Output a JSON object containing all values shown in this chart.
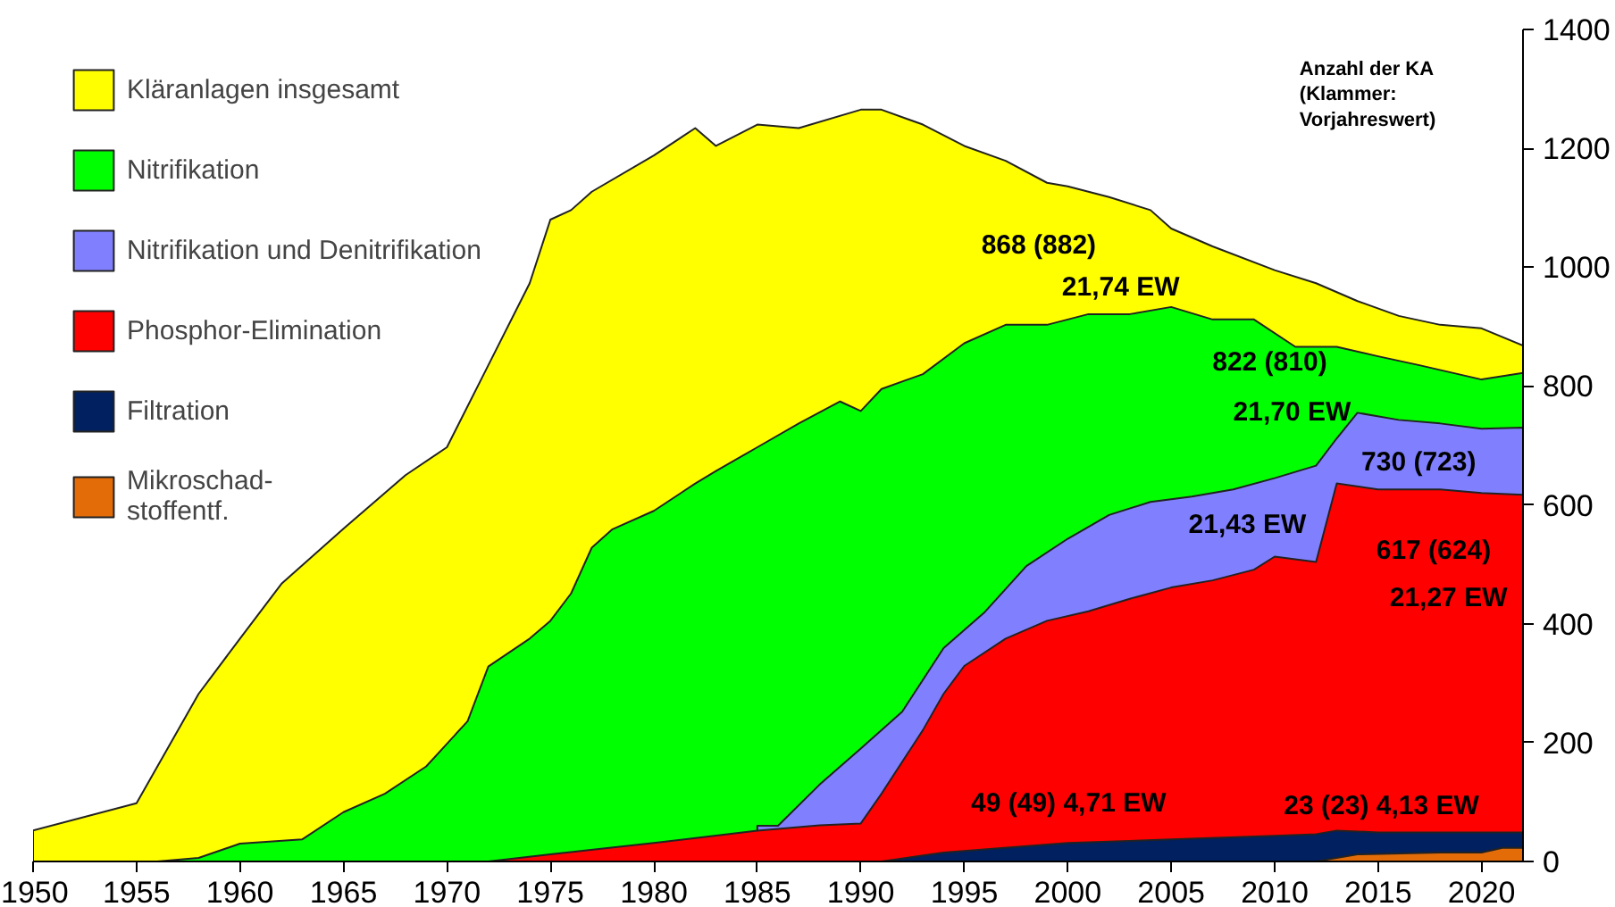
{
  "chart_data": {
    "type": "area",
    "xlim": [
      1950,
      2022
    ],
    "xticks": [
      1950,
      1955,
      1960,
      1965,
      1970,
      1975,
      1980,
      1985,
      1990,
      1995,
      2000,
      2005,
      2010,
      2015,
      2020
    ],
    "ylim": [
      0,
      1400
    ],
    "yticks": [
      0,
      200,
      400,
      600,
      800,
      1000,
      1200,
      1400
    ],
    "legend": "top left",
    "grid": false,
    "series": [
      {
        "name": "Kläranlagen insgesamt",
        "color": "#ffff00",
        "x": [
          1950,
          1955,
          1958,
          1960,
          1962,
          1965,
          1968,
          1970,
          1972,
          1974,
          1975,
          1976,
          1977,
          1980,
          1982,
          1983,
          1985,
          1987,
          1990,
          1991,
          1993,
          1995,
          1997,
          1999,
          2000,
          2002,
          2004,
          2005,
          2007,
          2010,
          2012,
          2014,
          2016,
          2018,
          2020,
          2022
        ],
        "values": [
          52,
          98,
          282,
          375,
          467,
          560,
          650,
          697,
          835,
          973,
          1080,
          1096,
          1127,
          1188,
          1234,
          1204,
          1240,
          1234,
          1265,
          1265,
          1240,
          1204,
          1179,
          1142,
          1136,
          1118,
          1096,
          1065,
          1035,
          995,
          973,
          943,
          918,
          903,
          897,
          868
        ]
      },
      {
        "name": "Nitrifikation",
        "color": "#00ff00",
        "x": [
          1956,
          1958,
          1960,
          1963,
          1965,
          1967,
          1969,
          1971,
          1972,
          1974,
          1975,
          1976,
          1977,
          1978,
          1980,
          1982,
          1983,
          1985,
          1987,
          1989,
          1990,
          1991,
          1993,
          1995,
          1997,
          1999,
          2001,
          2003,
          2005,
          2007,
          2009,
          2011,
          2013,
          2015,
          2017,
          2020,
          2022
        ],
        "values": [
          0,
          6,
          30,
          37,
          83,
          114,
          160,
          236,
          328,
          375,
          405,
          451,
          528,
          559,
          590,
          636,
          657,
          697,
          737,
          774,
          758,
          795,
          820,
          872,
          903,
          903,
          921,
          921,
          933,
          912,
          912,
          866,
          866,
          850,
          835,
          811,
          822
        ]
      },
      {
        "name": "Nitrifikation und Denitrifikation",
        "color": "#8080ff",
        "x": [
          1985,
          1986,
          1988,
          1990,
          1992,
          1994,
          1996,
          1998,
          2000,
          2002,
          2004,
          2006,
          2008,
          2010,
          2012,
          2013,
          2014,
          2016,
          2018,
          2020,
          2022
        ],
        "values": [
          60,
          60,
          129,
          190,
          252,
          359,
          420,
          497,
          543,
          583,
          605,
          614,
          626,
          645,
          666,
          712,
          755,
          743,
          737,
          728,
          730
        ]
      },
      {
        "name": "Phosphor-Elimination",
        "color": "#ff0000",
        "x": [
          1972,
          1975,
          1980,
          1985,
          1988,
          1990,
          1991,
          1993,
          1994,
          1995,
          1997,
          1999,
          2001,
          2003,
          2005,
          2007,
          2009,
          2010,
          2012,
          2013,
          2015,
          2018,
          2020,
          2022
        ],
        "values": [
          0,
          12,
          31,
          52,
          61,
          64,
          114,
          221,
          282,
          329,
          375,
          405,
          421,
          442,
          461,
          473,
          491,
          513,
          504,
          636,
          626,
          626,
          620,
          617
        ]
      },
      {
        "name": "Filtration",
        "color": "#002060",
        "x": [
          1991,
          1994,
          2000,
          2005,
          2010,
          2012,
          2013,
          2015,
          2022
        ],
        "values": [
          0,
          15,
          31,
          37,
          43,
          46,
          52,
          49,
          49
        ]
      },
      {
        "name": "Mikroschad-\nstoffentf.",
        "color": "#e36c09",
        "x": [
          2012,
          2014,
          2018,
          2020,
          2021,
          2022
        ],
        "values": [
          0,
          12,
          15,
          15,
          23,
          23
        ]
      }
    ],
    "annotations": [
      "Anzahl der KA\n(Klammer:\nVorjahreswert)",
      "868 (882)",
      "21,74 EW",
      "822 (810)",
      "21,70 EW",
      "730 (723)",
      "21,43 EW",
      "617 (624)",
      "21,27 EW",
      "49 (49) 4,71 EW",
      "23 (23) 4,13 EW"
    ]
  }
}
